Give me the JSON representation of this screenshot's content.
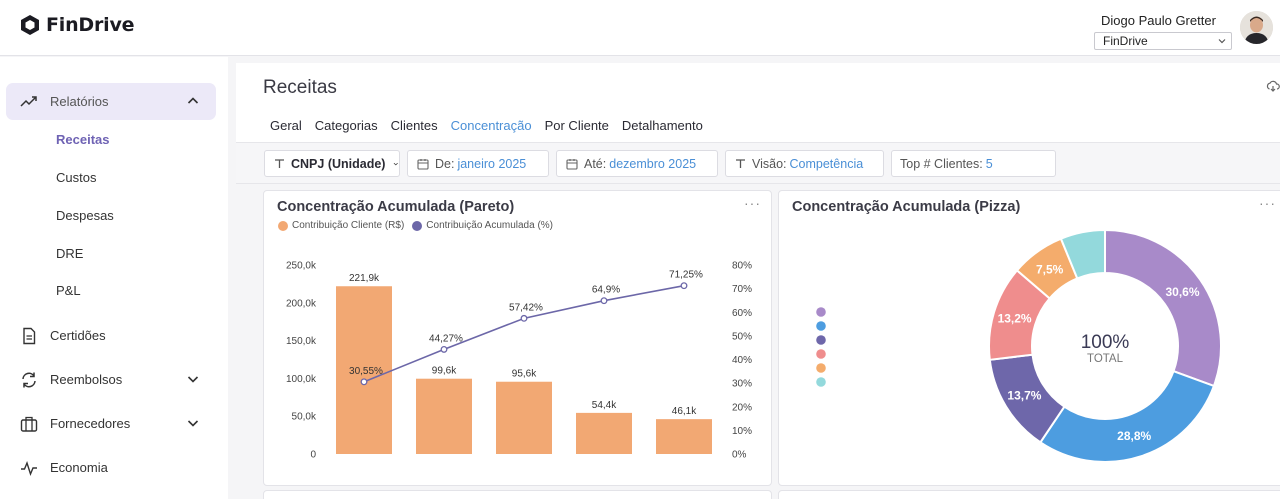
{
  "app": {
    "name": "FinDrive"
  },
  "user": {
    "name": "Diogo Paulo Gretter",
    "company": "FinDrive"
  },
  "sidebar": {
    "items": [
      {
        "label": "Relatórios",
        "icon": "trending-up-icon"
      },
      {
        "label": "Certidões",
        "icon": "document-icon"
      },
      {
        "label": "Reembolsos",
        "icon": "refresh-icon"
      },
      {
        "label": "Fornecedores",
        "icon": "briefcase-icon"
      },
      {
        "label": "Economia",
        "icon": "pulse-icon"
      }
    ],
    "sub_items": [
      "Receitas",
      "Custos",
      "Despesas",
      "DRE",
      "P&L"
    ]
  },
  "page": {
    "title": "Receitas"
  },
  "tabs": [
    "Geral",
    "Categorias",
    "Clientes",
    "Concentração",
    "Por Cliente",
    "Detalhamento"
  ],
  "filters": {
    "cnpj": "CNPJ (Unidade)",
    "from_label": "De:",
    "from_value": "janeiro 2025",
    "to_label": "Até:",
    "to_value": "dezembro 2025",
    "view_label": "Visão:",
    "view_value": "Competência",
    "top_label": "Top # Clientes:",
    "top_value": "5"
  },
  "colors": {
    "accent": "#4a8fd6",
    "active_nav": "#ece9f8",
    "bar": "#f2a873",
    "line": "#6c67a8"
  },
  "chart_data": [
    {
      "type": "bar",
      "title": "Concentração Acumulada (Pareto)",
      "categories": [
        "",
        "",
        "",
        "",
        ""
      ],
      "series": [
        {
          "name": "Contribuição Cliente (R$)",
          "type": "bar",
          "color": "#f2a873",
          "values": [
            221.9,
            99.6,
            95.6,
            54.4,
            46.1
          ],
          "labels": [
            "221,9k",
            "99,6k",
            "95,6k",
            "54,4k",
            "46,1k"
          ]
        },
        {
          "name": "Contribuição Acumulada (%)",
          "type": "line",
          "color": "#6c67a8",
          "values": [
            30.55,
            44.27,
            57.42,
            64.9,
            71.25
          ],
          "labels": [
            "30,55%",
            "44,27%",
            "57,42%",
            "64,9%",
            "71,25%"
          ]
        }
      ],
      "y_ticks": [
        "250,0k",
        "200,0k",
        "150,0k",
        "100,0k",
        "50,0k",
        "0"
      ],
      "y2_ticks": [
        "80%",
        "70%",
        "60%",
        "50%",
        "40%",
        "30%",
        "20%",
        "10%",
        "0%"
      ],
      "ylim": [
        0,
        250
      ],
      "y2lim": [
        0,
        80
      ]
    },
    {
      "type": "pie",
      "title": "Concentração Acumulada (Pizza)",
      "center_value": "100%",
      "center_label": "TOTAL",
      "slices": [
        {
          "value": 30.6,
          "label": "30,6%",
          "color": "#a88ac9"
        },
        {
          "value": 28.8,
          "label": "28,8%",
          "color": "#4d9de0"
        },
        {
          "value": 13.7,
          "label": "13,7%",
          "color": "#6e67aa"
        },
        {
          "value": 13.2,
          "label": "13,2%",
          "color": "#ef8d8d"
        },
        {
          "value": 7.5,
          "label": "7,5%",
          "color": "#f4ac6c"
        },
        {
          "value": 6.2,
          "label": "",
          "color": "#93d9dc"
        }
      ]
    }
  ]
}
